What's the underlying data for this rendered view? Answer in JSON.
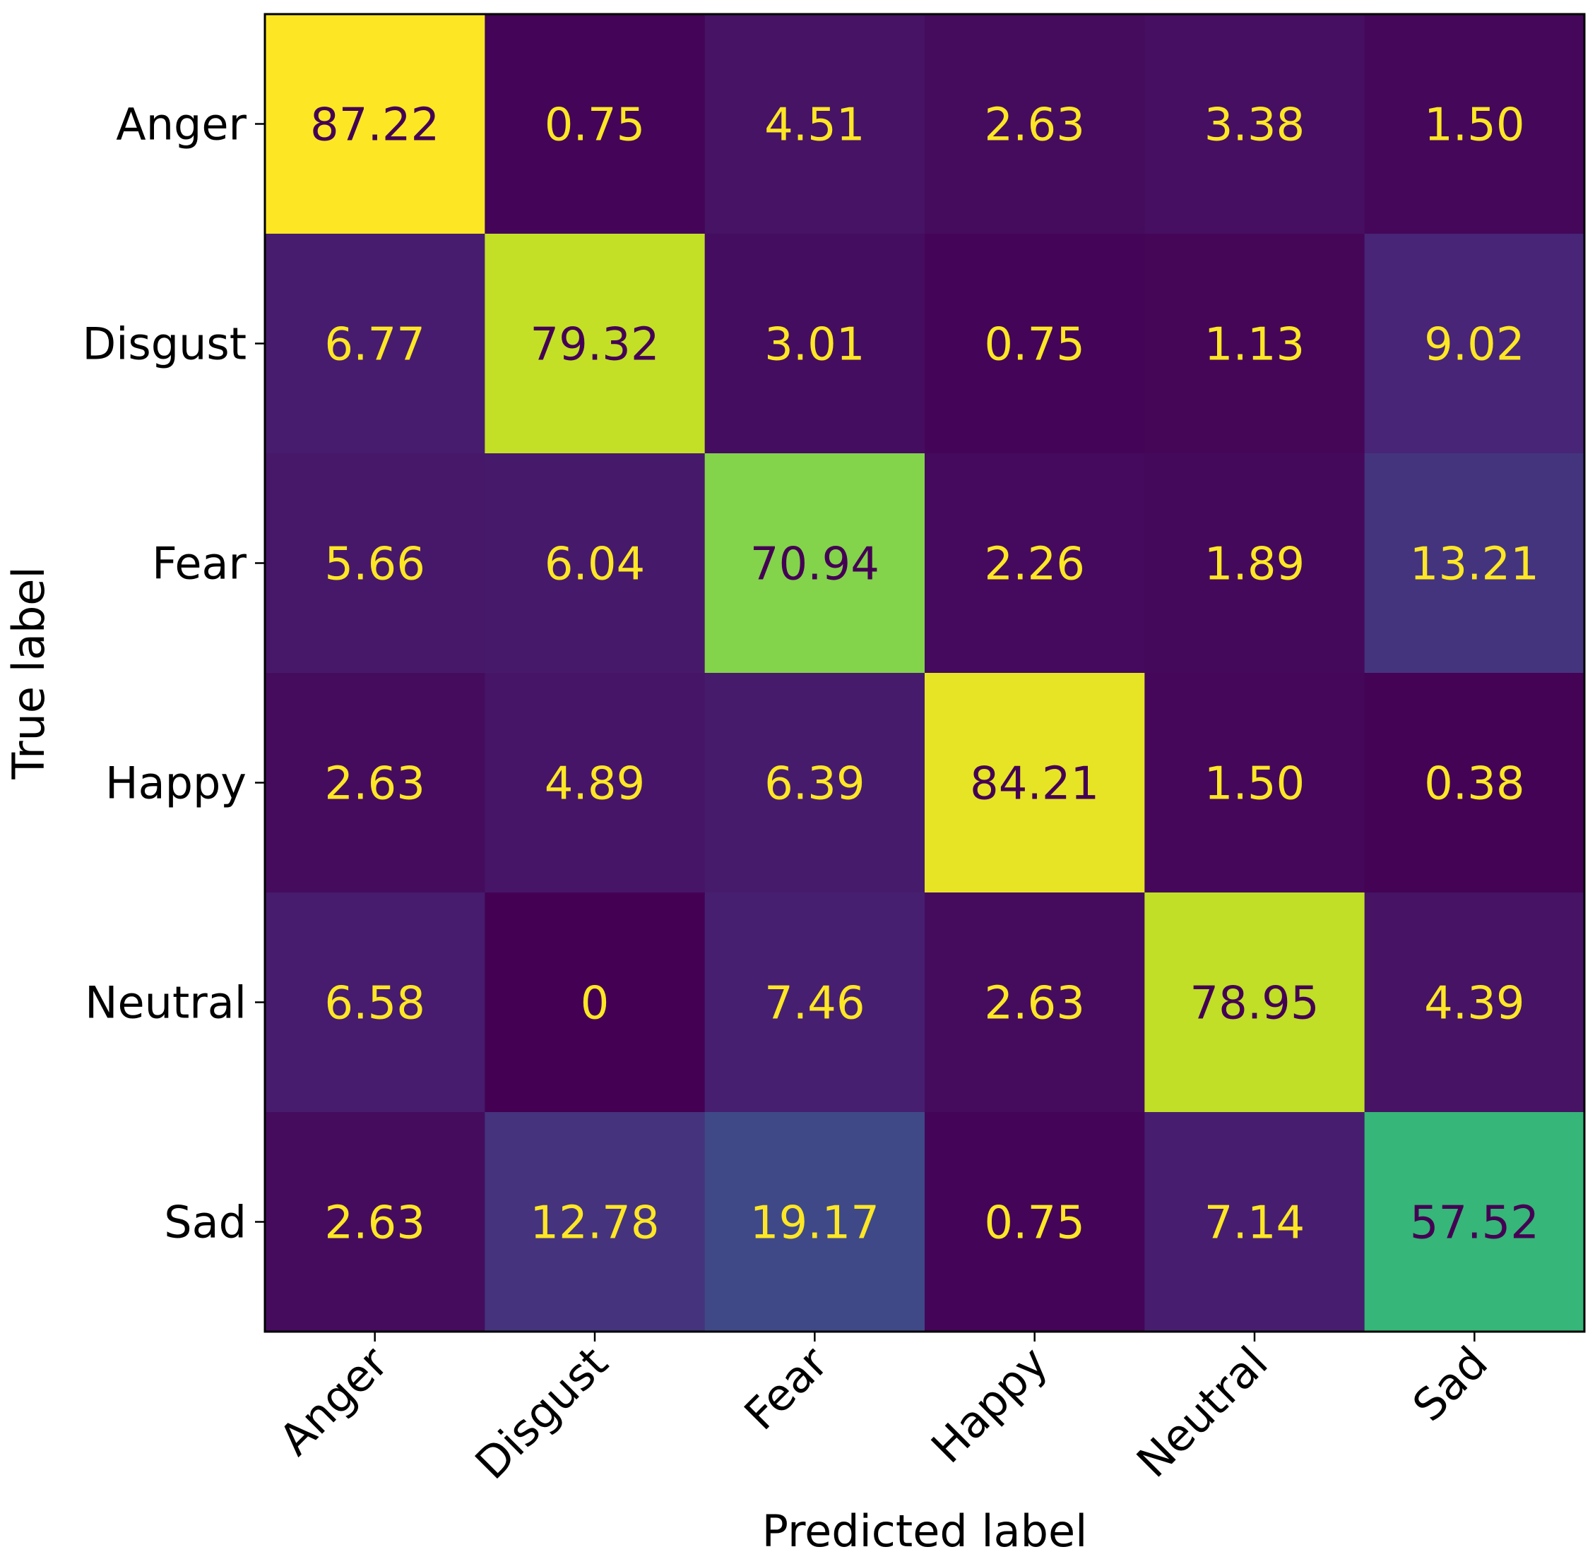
{
  "chart_data": {
    "type": "heatmap",
    "title": "",
    "xlabel": "Predicted label",
    "ylabel": "True label",
    "x_categories": [
      "Anger",
      "Disgust",
      "Fear",
      "Happy",
      "Neutral",
      "Sad"
    ],
    "y_categories": [
      "Anger",
      "Disgust",
      "Fear",
      "Happy",
      "Neutral",
      "Sad"
    ],
    "values": [
      [
        87.22,
        0.75,
        4.51,
        2.63,
        3.38,
        1.5
      ],
      [
        6.77,
        79.32,
        3.01,
        0.75,
        1.13,
        9.02
      ],
      [
        5.66,
        6.04,
        70.94,
        2.26,
        1.89,
        13.21
      ],
      [
        2.63,
        4.89,
        6.39,
        84.21,
        1.5,
        0.38
      ],
      [
        6.58,
        0,
        7.46,
        2.63,
        78.95,
        4.39
      ],
      [
        2.63,
        12.78,
        19.17,
        0.75,
        7.14,
        57.52
      ]
    ],
    "value_labels": [
      [
        "87.22",
        "0.75",
        "4.51",
        "2.63",
        "3.38",
        "1.50"
      ],
      [
        "6.77",
        "79.32",
        "3.01",
        "0.75",
        "1.13",
        "9.02"
      ],
      [
        "5.66",
        "6.04",
        "70.94",
        "2.26",
        "1.89",
        "13.21"
      ],
      [
        "2.63",
        "4.89",
        "6.39",
        "84.21",
        "1.50",
        "0.38"
      ],
      [
        "6.58",
        "0",
        "7.46",
        "2.63",
        "78.95",
        "4.39"
      ],
      [
        "2.63",
        "12.78",
        "19.17",
        "0.75",
        "7.14",
        "57.52"
      ]
    ],
    "colormap": "viridis",
    "grid": false,
    "colorbar": false,
    "x_tick_rotation": 45,
    "text_colors": {
      "light": "#fde725",
      "dark": "#440154"
    }
  }
}
